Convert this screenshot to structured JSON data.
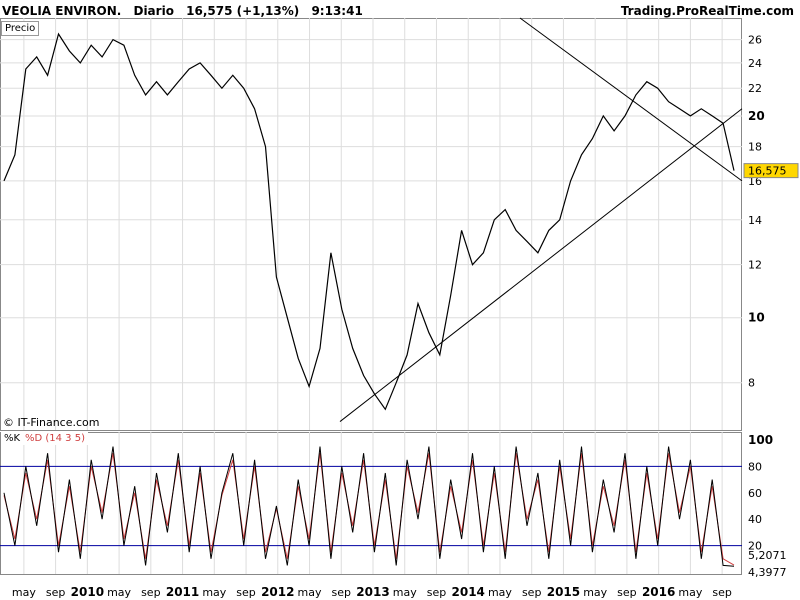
{
  "header": {
    "symbol": "VEOLIA ENVIRON.",
    "period": "Diario",
    "price_change": "16,575 (+1,13%)",
    "time": "9:13:41",
    "source": "Trading.ProRealTime.com"
  },
  "price_panel": {
    "label": "Precio",
    "copyright": "© IT-Finance.com",
    "last_price_label": "16,575"
  },
  "stoch_panel": {
    "k_label": "%K",
    "d_label": "%D (14 3 5)",
    "k_value_label": "4,3977",
    "d_value_label": "5,2071"
  },
  "colors": {
    "price_line": "#000000",
    "trendline": "#000000",
    "stoch_k": "#000000",
    "stoch_d": "#d04040",
    "stoch_levels": "#0000a0",
    "price_tag_bg": "#ffd700",
    "grid": "#dddddd"
  },
  "chart_data": [
    {
      "type": "line",
      "title": "VEOLIA ENVIRON. Diario",
      "scale": "log",
      "ylim": [
        6.8,
        28
      ],
      "y_ticks": [
        8,
        10,
        12,
        14,
        16,
        18,
        20,
        22,
        24,
        26
      ],
      "x_ticks": [
        {
          "label": "may",
          "bold": false
        },
        {
          "label": "sep",
          "bold": false
        },
        {
          "label": "2010",
          "bold": true
        },
        {
          "label": "may",
          "bold": false
        },
        {
          "label": "sep",
          "bold": false
        },
        {
          "label": "2011",
          "bold": true
        },
        {
          "label": "may",
          "bold": false
        },
        {
          "label": "sep",
          "bold": false
        },
        {
          "label": "2012",
          "bold": true
        },
        {
          "label": "may",
          "bold": false
        },
        {
          "label": "sep",
          "bold": false
        },
        {
          "label": "2013",
          "bold": true
        },
        {
          "label": "may",
          "bold": false
        },
        {
          "label": "sep",
          "bold": false
        },
        {
          "label": "2014",
          "bold": true
        },
        {
          "label": "may",
          "bold": false
        },
        {
          "label": "sep",
          "bold": false
        },
        {
          "label": "2015",
          "bold": true
        },
        {
          "label": "may",
          "bold": false
        },
        {
          "label": "sep",
          "bold": false
        },
        {
          "label": "2016",
          "bold": true
        },
        {
          "label": "may",
          "bold": false
        },
        {
          "label": "sep",
          "bold": false
        }
      ],
      "series": [
        {
          "values": [
            16.0,
            17.5,
            23.5,
            24.5,
            23.0,
            26.5,
            25.0,
            24.0,
            25.5,
            24.5,
            26.0,
            25.5,
            23.0,
            21.5,
            22.5,
            21.5,
            22.5,
            23.5,
            24.0,
            23.0,
            22.0,
            23.0,
            22.0,
            20.5,
            18.0,
            11.5,
            10.0,
            8.7,
            7.9,
            9.0,
            12.5,
            10.3,
            9.0,
            8.2,
            7.7,
            7.3,
            8.0,
            8.8,
            10.5,
            9.5,
            8.8,
            10.8,
            13.5,
            12.0,
            12.5,
            14.0,
            14.5,
            13.5,
            13.0,
            12.5,
            13.5,
            14.0,
            16.0,
            17.5,
            18.5,
            20.0,
            19.0,
            20.0,
            21.5,
            22.5,
            22.0,
            21.0,
            20.5,
            20.0,
            20.5,
            20.0,
            19.5,
            16.575
          ]
        }
      ],
      "trendlines": [
        {
          "from": [
            7.0,
            7.0
          ],
          "to": [
            21.0,
            20.5
          ]
        },
        {
          "from": [
            28.0,
            28.0
          ],
          "to": [
            16.0,
            16.0
          ]
        }
      ]
    },
    {
      "type": "line",
      "title": "",
      "ylim": [
        0,
        100
      ],
      "y_ticks": [
        20,
        40,
        60,
        80,
        100
      ],
      "levels": [
        20,
        80
      ],
      "series": [
        {
          "name": "%K",
          "values": [
            60,
            20,
            80,
            35,
            90,
            15,
            70,
            10,
            85,
            40,
            95,
            20,
            65,
            5,
            75,
            30,
            90,
            15,
            80,
            10,
            60,
            90,
            20,
            85,
            10,
            50,
            5,
            70,
            20,
            95,
            10,
            80,
            30,
            90,
            15,
            75,
            5,
            85,
            40,
            95,
            10,
            70,
            25,
            90,
            15,
            80,
            10,
            95,
            35,
            75,
            10,
            85,
            20,
            95,
            15,
            70,
            30,
            90,
            10,
            80,
            20,
            95,
            40,
            85,
            10,
            70,
            5,
            4.3977
          ]
        },
        {
          "name": "%D (14 3 5)",
          "values": [
            58,
            25,
            75,
            40,
            85,
            20,
            65,
            15,
            80,
            45,
            90,
            25,
            60,
            10,
            70,
            35,
            85,
            20,
            75,
            15,
            58,
            85,
            25,
            80,
            15,
            48,
            10,
            65,
            25,
            90,
            15,
            75,
            35,
            85,
            20,
            70,
            10,
            80,
            45,
            90,
            15,
            65,
            30,
            85,
            20,
            75,
            15,
            90,
            40,
            70,
            15,
            80,
            25,
            90,
            20,
            65,
            35,
            85,
            15,
            75,
            25,
            90,
            45,
            80,
            15,
            65,
            10,
            5.2071
          ]
        }
      ]
    }
  ]
}
